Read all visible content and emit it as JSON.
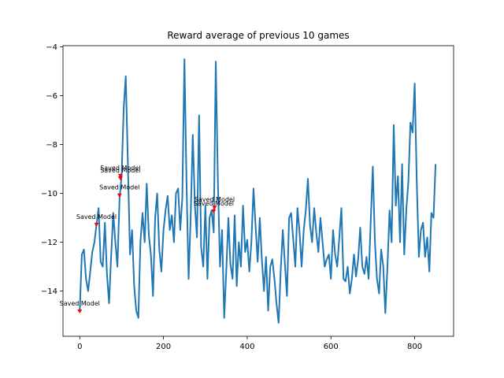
{
  "chart_data": {
    "type": "line",
    "title": "Reward average of previous 10 games",
    "xlabel": "",
    "ylabel": "",
    "xlim": [
      -40,
      893
    ],
    "ylim": [
      -15.85,
      -3.95
    ],
    "xticks": [
      0,
      200,
      400,
      600,
      800
    ],
    "yticks": [
      -14,
      -12,
      -10,
      -8,
      -6,
      -4
    ],
    "grid": false,
    "series": [
      {
        "color": "#1f77b4",
        "x": [
          0,
          5,
          10,
          15,
          20,
          25,
          30,
          35,
          40,
          45,
          50,
          55,
          60,
          65,
          70,
          75,
          80,
          85,
          90,
          95,
          100,
          105,
          110,
          115,
          120,
          125,
          130,
          135,
          140,
          145,
          150,
          155,
          160,
          165,
          170,
          175,
          180,
          185,
          190,
          195,
          200,
          205,
          210,
          215,
          220,
          225,
          230,
          235,
          240,
          245,
          250,
          255,
          260,
          265,
          270,
          275,
          280,
          285,
          290,
          295,
          300,
          305,
          310,
          315,
          320,
          325,
          330,
          335,
          340,
          345,
          350,
          355,
          360,
          365,
          370,
          375,
          380,
          385,
          390,
          395,
          400,
          405,
          410,
          415,
          420,
          425,
          430,
          435,
          440,
          445,
          450,
          455,
          460,
          465,
          470,
          475,
          480,
          485,
          490,
          495,
          500,
          505,
          510,
          515,
          520,
          525,
          530,
          535,
          540,
          545,
          550,
          555,
          560,
          565,
          570,
          575,
          580,
          585,
          590,
          595,
          600,
          605,
          610,
          615,
          620,
          625,
          630,
          635,
          640,
          645,
          650,
          655,
          660,
          665,
          670,
          675,
          680,
          685,
          690,
          695,
          700,
          705,
          710,
          715,
          720,
          725,
          730,
          735,
          740,
          745,
          750,
          755,
          760,
          765,
          770,
          775,
          780,
          785,
          790,
          795,
          800,
          805,
          810,
          815,
          820,
          825,
          830,
          835,
          840,
          845,
          850
        ],
        "y": [
          -14.8,
          -12.5,
          -12.3,
          -13.5,
          -14.0,
          -13.2,
          -12.4,
          -12.0,
          -11.3,
          -10.6,
          -12.8,
          -13.0,
          -11.2,
          -13.3,
          -14.5,
          -12.6,
          -10.8,
          -12.0,
          -13.0,
          -10.2,
          -9.3,
          -6.5,
          -5.2,
          -8.8,
          -12.5,
          -11.5,
          -13.8,
          -14.8,
          -15.1,
          -12.0,
          -10.8,
          -12.0,
          -9.6,
          -11.7,
          -12.5,
          -14.2,
          -11.0,
          -10.0,
          -12.3,
          -13.2,
          -11.5,
          -10.7,
          -10.1,
          -11.5,
          -10.9,
          -12.0,
          -10.0,
          -9.8,
          -11.5,
          -10.2,
          -4.5,
          -9.5,
          -13.5,
          -11.0,
          -7.6,
          -10.5,
          -11.8,
          -6.8,
          -12.2,
          -13.0,
          -10.5,
          -13.5,
          -11.0,
          -10.7,
          -11.6,
          -4.6,
          -9.5,
          -13.0,
          -11.5,
          -15.1,
          -13.2,
          -11.0,
          -12.9,
          -13.5,
          -10.9,
          -13.8,
          -12.0,
          -13.0,
          -10.5,
          -12.4,
          -11.9,
          -13.2,
          -12.0,
          -9.8,
          -11.3,
          -12.8,
          -11.0,
          -12.7,
          -14.0,
          -12.6,
          -14.8,
          -13.0,
          -12.7,
          -13.5,
          -14.5,
          -15.3,
          -13.2,
          -11.5,
          -12.9,
          -14.2,
          -11.0,
          -10.8,
          -11.9,
          -13.0,
          -10.6,
          -11.6,
          -13.0,
          -11.5,
          -10.7,
          -9.4,
          -11.3,
          -12.0,
          -10.6,
          -11.6,
          -12.4,
          -11.0,
          -12.0,
          -13.0,
          -12.7,
          -12.5,
          -13.5,
          -11.5,
          -12.5,
          -13.0,
          -11.8,
          -10.6,
          -13.5,
          -13.6,
          -13.0,
          -14.1,
          -13.5,
          -12.5,
          -13.4,
          -12.7,
          -11.4,
          -13.0,
          -13.3,
          -12.6,
          -13.5,
          -11.2,
          -8.9,
          -12.0,
          -13.5,
          -14.1,
          -12.3,
          -13.0,
          -14.9,
          -13.0,
          -10.7,
          -12.0,
          -7.2,
          -10.5,
          -9.3,
          -12.0,
          -8.8,
          -12.5,
          -10.7,
          -9.5,
          -7.1,
          -7.5,
          -5.5,
          -9.5,
          -12.6,
          -11.5,
          -11.2,
          -12.6,
          -11.8,
          -13.2,
          -10.8,
          -11.0,
          -8.8
        ]
      }
    ],
    "annotations": [
      {
        "text": "Saved Model",
        "x": 0,
        "y": -14.85
      },
      {
        "text": "Saved Model",
        "x": 40,
        "y": -11.3
      },
      {
        "text": "Saved Model",
        "x": 95,
        "y": -10.1
      },
      {
        "text": "Saved Model",
        "x": 97,
        "y": -9.4
      },
      {
        "text": "Saved Model",
        "x": 97,
        "y": -9.3
      },
      {
        "text": "Saved Model",
        "x": 320,
        "y": -10.75
      },
      {
        "text": "Saved Model",
        "x": 322,
        "y": -10.6
      }
    ],
    "marker_color": "#ff0000"
  }
}
